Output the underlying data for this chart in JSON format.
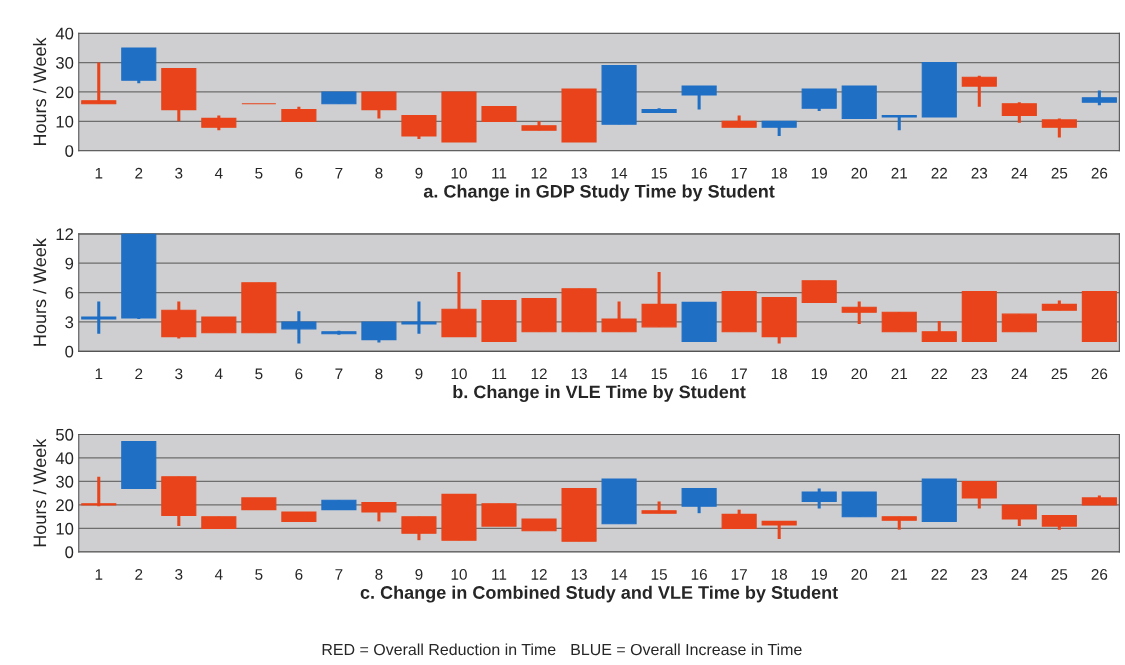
{
  "chart_data": [
    {
      "type": "candlestick",
      "xlabel": "a. Change in GDP Study Time by Student",
      "ylabel": "Hours / Week",
      "categories": [
        "1",
        "2",
        "3",
        "4",
        "5",
        "6",
        "7",
        "8",
        "9",
        "10",
        "11",
        "12",
        "13",
        "14",
        "15",
        "16",
        "17",
        "18",
        "19",
        "20",
        "21",
        "22",
        "23",
        "24",
        "25",
        "26"
      ],
      "ohlc": [
        [
          17,
          30,
          16,
          16
        ],
        [
          24,
          35,
          23,
          35
        ],
        [
          28,
          28,
          10,
          14
        ],
        [
          11,
          12,
          7,
          8
        ],
        [
          16,
          16,
          16,
          16
        ],
        [
          14,
          15,
          10,
          10
        ],
        [
          16,
          20,
          16,
          20
        ],
        [
          20,
          20,
          11,
          14
        ],
        [
          12,
          12,
          4,
          5
        ],
        [
          20,
          20,
          3,
          3
        ],
        [
          15,
          15,
          10,
          10
        ],
        [
          8.5,
          10,
          7,
          7
        ],
        [
          21,
          21,
          3,
          3
        ],
        [
          9,
          29,
          9,
          29
        ],
        [
          13,
          14.5,
          13,
          14
        ],
        [
          19,
          22,
          14,
          22
        ],
        [
          10,
          12,
          8,
          8
        ],
        [
          8,
          10,
          5,
          10
        ],
        [
          14.5,
          21,
          13.5,
          21
        ],
        [
          11,
          22,
          11,
          22
        ],
        [
          11.5,
          12,
          7,
          12
        ],
        [
          11.5,
          30,
          11.5,
          30
        ],
        [
          25,
          25.5,
          15,
          22
        ],
        [
          16,
          16.5,
          9.5,
          12
        ],
        [
          10.5,
          11,
          4.5,
          8
        ],
        [
          16.5,
          20.5,
          15.5,
          18
        ]
      ],
      "colors": [
        "#e8431a",
        "#1f6fc5",
        "#e8431a",
        "#e8431a",
        "#e8431a",
        "#e8431a",
        "#1f6fc5",
        "#e8431a",
        "#e8431a",
        "#e8431a",
        "#e8431a",
        "#e8431a",
        "#e8431a",
        "#1f6fc5",
        "#1f6fc5",
        "#1f6fc5",
        "#e8431a",
        "#1f6fc5",
        "#1f6fc5",
        "#1f6fc5",
        "#1f6fc5",
        "#1f6fc5",
        "#e8431a",
        "#e8431a",
        "#e8431a",
        "#1f6fc5"
      ],
      "ylim": [
        0,
        40
      ],
      "yticks": [
        0,
        10,
        20,
        30,
        40
      ],
      "grid": "y"
    },
    {
      "type": "candlestick",
      "xlabel": "b. Change in VLE Time by Student",
      "ylabel": "Hours / Week",
      "categories": [
        "1",
        "2",
        "3",
        "4",
        "5",
        "6",
        "7",
        "8",
        "9",
        "10",
        "11",
        "12",
        "13",
        "14",
        "15",
        "16",
        "17",
        "18",
        "19",
        "20",
        "21",
        "22",
        "23",
        "24",
        "25",
        "26"
      ],
      "ohlc": [
        [
          3.3,
          5.1,
          1.8,
          3.5
        ],
        [
          3.4,
          12,
          3.3,
          12
        ],
        [
          4.2,
          5.1,
          1.3,
          1.5
        ],
        [
          3.5,
          3.5,
          1.9,
          1.9
        ],
        [
          7,
          7,
          1.9,
          1.9
        ],
        [
          2.3,
          4.1,
          0.8,
          3
        ],
        [
          1.8,
          2.1,
          1.7,
          2
        ],
        [
          1.2,
          3,
          0.9,
          3
        ],
        [
          2.8,
          5.1,
          1.8,
          3
        ],
        [
          4.3,
          8.1,
          1.5,
          1.5
        ],
        [
          5.2,
          5.2,
          1,
          1
        ],
        [
          5.4,
          5.4,
          2,
          2
        ],
        [
          6.4,
          6.4,
          2,
          2
        ],
        [
          3.3,
          5.1,
          2,
          2
        ],
        [
          4.8,
          8.1,
          2.5,
          2.5
        ],
        [
          1,
          5,
          1,
          5
        ],
        [
          6.1,
          6.1,
          2,
          2
        ],
        [
          5.5,
          5.5,
          0.8,
          1.5
        ],
        [
          7.2,
          7.2,
          5,
          5
        ],
        [
          4.5,
          5.1,
          2.8,
          4
        ],
        [
          4,
          4,
          2,
          2
        ],
        [
          2,
          3.1,
          1,
          1
        ],
        [
          6.1,
          6.1,
          1,
          1
        ],
        [
          3.8,
          3.8,
          2,
          2
        ],
        [
          4.8,
          5.2,
          4.2,
          4.2
        ],
        [
          6.1,
          6.1,
          1,
          1
        ]
      ],
      "colors": [
        "#1f6fc5",
        "#1f6fc5",
        "#e8431a",
        "#e8431a",
        "#e8431a",
        "#1f6fc5",
        "#1f6fc5",
        "#1f6fc5",
        "#1f6fc5",
        "#e8431a",
        "#e8431a",
        "#e8431a",
        "#e8431a",
        "#e8431a",
        "#e8431a",
        "#1f6fc5",
        "#e8431a",
        "#e8431a",
        "#e8431a",
        "#e8431a",
        "#e8431a",
        "#e8431a",
        "#e8431a",
        "#e8431a",
        "#e8431a",
        "#e8431a"
      ],
      "ylim": [
        0,
        12
      ],
      "yticks": [
        0,
        3,
        6,
        9,
        12
      ],
      "grid": "y"
    },
    {
      "type": "candlestick",
      "xlabel": "c. Change in Combined Study and VLE Time by Student",
      "ylabel": "Hours / Week",
      "categories": [
        "1",
        "2",
        "3",
        "4",
        "5",
        "6",
        "7",
        "8",
        "9",
        "10",
        "11",
        "12",
        "13",
        "14",
        "15",
        "16",
        "17",
        "18",
        "19",
        "20",
        "21",
        "22",
        "23",
        "24",
        "25",
        "26"
      ],
      "ohlc": [
        [
          20.5,
          32,
          19.5,
          20
        ],
        [
          27,
          47,
          27,
          47
        ],
        [
          32,
          32,
          11,
          15.5
        ],
        [
          15,
          15,
          10,
          10
        ],
        [
          23,
          23,
          18,
          18
        ],
        [
          17,
          17,
          13,
          13
        ],
        [
          18,
          22,
          18,
          22
        ],
        [
          21,
          21,
          13,
          17
        ],
        [
          15,
          15,
          5,
          8
        ],
        [
          24.5,
          24.5,
          5,
          5
        ],
        [
          20.5,
          20.5,
          11,
          11
        ],
        [
          14,
          14,
          9,
          9
        ],
        [
          27,
          27,
          4.6,
          4.6
        ],
        [
          12,
          31,
          12,
          31
        ],
        [
          17.5,
          21.5,
          16.5,
          16.5
        ],
        [
          19.5,
          27,
          16.5,
          27
        ],
        [
          16,
          18,
          10,
          10
        ],
        [
          13,
          13,
          5.5,
          11.5
        ],
        [
          21.5,
          27,
          18.5,
          25.5
        ],
        [
          15,
          25.5,
          15,
          25.5
        ],
        [
          15,
          15,
          9.5,
          13.5
        ],
        [
          13,
          31,
          13,
          31
        ],
        [
          30,
          30,
          18.5,
          23
        ],
        [
          20,
          20,
          11,
          14
        ],
        [
          15.5,
          15.5,
          9.5,
          11
        ],
        [
          23,
          24,
          20,
          20
        ]
      ],
      "colors": [
        "#e8431a",
        "#1f6fc5",
        "#e8431a",
        "#e8431a",
        "#e8431a",
        "#e8431a",
        "#1f6fc5",
        "#e8431a",
        "#e8431a",
        "#e8431a",
        "#e8431a",
        "#e8431a",
        "#e8431a",
        "#1f6fc5",
        "#e8431a",
        "#1f6fc5",
        "#e8431a",
        "#e8431a",
        "#1f6fc5",
        "#1f6fc5",
        "#e8431a",
        "#1f6fc5",
        "#e8431a",
        "#e8431a",
        "#e8431a",
        "#e8431a"
      ],
      "ylim": [
        0,
        50
      ],
      "yticks": [
        0,
        10,
        20,
        30,
        40,
        50
      ],
      "grid": "y",
      "annotations": [
        "RED = Overall Reduction in Time",
        "BLUE = Overall Increase in Time"
      ]
    }
  ]
}
